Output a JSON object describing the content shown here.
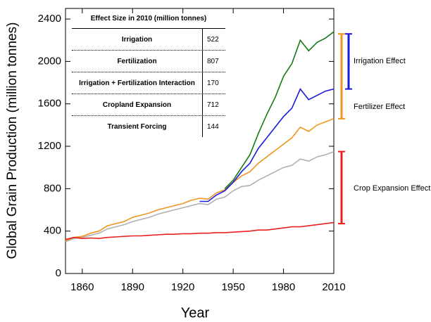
{
  "chart_data": {
    "type": "line",
    "x_label": "Year",
    "y_label": "Global Grain Production (million tonnes)",
    "x": [
      1850,
      1855,
      1860,
      1865,
      1870,
      1875,
      1880,
      1885,
      1890,
      1895,
      1900,
      1905,
      1910,
      1915,
      1920,
      1925,
      1930,
      1935,
      1940,
      1945,
      1950,
      1955,
      1960,
      1965,
      1970,
      1975,
      1980,
      1985,
      1990,
      1995,
      2000,
      2005,
      2010
    ],
    "xlim": [
      1850,
      2010
    ],
    "xticks": [
      1860,
      1890,
      1920,
      1950,
      1980,
      2010
    ],
    "ylim": [
      0,
      2500
    ],
    "yticks": [
      0,
      400,
      800,
      1200,
      1600,
      2000,
      2400
    ],
    "series": [
      {
        "color": "#b0b0b0",
        "values": [
          300,
          330,
          340,
          360,
          380,
          420,
          440,
          460,
          490,
          510,
          530,
          560,
          580,
          600,
          620,
          640,
          660,
          650,
          700,
          720,
          780,
          820,
          830,
          880,
          920,
          960,
          1000,
          1020,
          1080,
          1060,
          1100,
          1120,
          1150
        ]
      },
      {
        "color": "#f0951e",
        "values": [
          310,
          340,
          350,
          380,
          400,
          450,
          470,
          490,
          530,
          550,
          570,
          600,
          620,
          640,
          660,
          690,
          710,
          700,
          760,
          790,
          860,
          920,
          960,
          1040,
          1100,
          1160,
          1220,
          1280,
          1380,
          1340,
          1400,
          1430,
          1460
        ]
      },
      {
        "color": "#1a1adf",
        "values": [
          null,
          null,
          null,
          null,
          null,
          null,
          null,
          null,
          null,
          null,
          null,
          null,
          null,
          null,
          null,
          null,
          680,
          680,
          740,
          780,
          860,
          960,
          1040,
          1180,
          1280,
          1380,
          1480,
          1560,
          1740,
          1640,
          1680,
          1720,
          1740
        ]
      },
      {
        "color": "#167a16",
        "values": [
          null,
          null,
          null,
          null,
          null,
          null,
          null,
          null,
          null,
          null,
          null,
          null,
          null,
          null,
          null,
          null,
          null,
          null,
          null,
          800,
          880,
          1000,
          1120,
          1320,
          1500,
          1660,
          1860,
          1980,
          2200,
          2100,
          2180,
          2220,
          2280
        ]
      },
      {
        "color": "#e8201e",
        "values": [
          320,
          340,
          330,
          335,
          330,
          340,
          345,
          350,
          355,
          355,
          360,
          365,
          370,
          370,
          375,
          375,
          380,
          380,
          385,
          385,
          390,
          395,
          400,
          410,
          410,
          420,
          430,
          440,
          440,
          450,
          460,
          470,
          480
        ]
      }
    ],
    "effects": [
      {
        "label": "Irrigation Effect",
        "color": "#1a1adf",
        "from": 1740,
        "to": 2260
      },
      {
        "label": "Fertilizer Effect",
        "color": "#f0951e",
        "from": 1460,
        "to": 2260
      },
      {
        "label": "Crop Expansion Effect",
        "color": "#e8201e",
        "from": 470,
        "to": 1150
      }
    ],
    "table": {
      "title": "Effect Size in 2010 (million tonnes)",
      "rows": [
        [
          "Irrigation",
          "522"
        ],
        [
          "Fertilization",
          "807"
        ],
        [
          "Irrigation + Fertilization Interaction",
          "170"
        ],
        [
          "Cropland Expansion",
          "712"
        ],
        [
          "Transient Forcing",
          "144"
        ]
      ]
    }
  }
}
